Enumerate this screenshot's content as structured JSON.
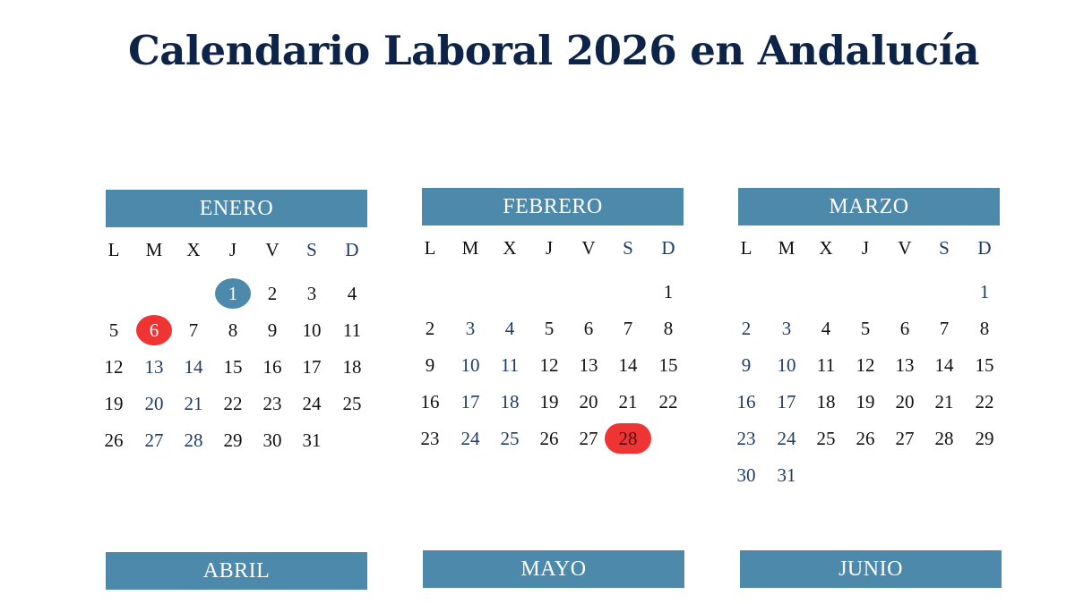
{
  "title": "Calendario Laboral 2026 en Andalucía",
  "colors": {
    "title": "#0d2347",
    "header": "#4d89ab",
    "holiday_national": "#4d89ab",
    "holiday_red": "#ef3434",
    "navy_text": "#1f3c66"
  },
  "weekdays": [
    "L",
    "M",
    "X",
    "J",
    "V",
    "S",
    "D"
  ],
  "months": [
    {
      "name": "ENERO",
      "first_weekday": 3,
      "days": 31,
      "highlights": [
        {
          "day": 1,
          "color": "#4d89ab"
        },
        {
          "day": 6,
          "color": "#ef3434"
        }
      ],
      "navy_days": [
        13,
        14,
        20,
        21,
        27,
        28
      ]
    },
    {
      "name": "FEBRERO",
      "first_weekday": 6,
      "days": 28,
      "highlights": [
        {
          "day": 28,
          "color": "#ef3434"
        }
      ],
      "navy_days": [
        3,
        4,
        10,
        11,
        17,
        18,
        24,
        25
      ]
    },
    {
      "name": "MARZO",
      "first_weekday": 6,
      "days": 31,
      "highlights": [],
      "navy_days": [
        1,
        2,
        3,
        9,
        10,
        16,
        17,
        23,
        24,
        30,
        31
      ]
    },
    {
      "name": "ABRIL"
    },
    {
      "name": "MAYO"
    },
    {
      "name": "JUNIO"
    }
  ]
}
